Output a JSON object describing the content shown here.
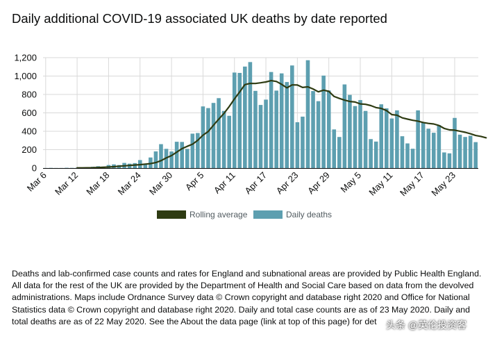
{
  "title": "Daily additional COVID-19 associated UK deaths by date reported",
  "footnote": "Deaths and lab-confirmed case counts and rates for England and subnational areas are provided by Public Health England. All data for the rest of the UK are provided by the Department of Health and Social Care based on data from the devolved administrations. Maps include Ordnance Survey data © Crown copyright and database right 2020 and Office for National Statistics data © Crown copyright and database right 2020. Daily and total case counts are as of 23 May 2020. Daily and total deaths are as of 22 May 2020. See the About the data page (link at top of this page) for det",
  "watermark": "头条 @英伦投资客",
  "colors": {
    "bar": "#5d9fb0",
    "line": "#2e3b12",
    "grid": "#d9d9d9",
    "axis": "#0b0c0c"
  },
  "chart_data": {
    "type": "bar",
    "title": "Daily additional COVID-19 associated UK deaths by date reported",
    "xlabel": "",
    "ylabel": "",
    "ylim": [
      0,
      1200
    ],
    "yticks": [
      0,
      200,
      400,
      600,
      800,
      1000,
      1200
    ],
    "ytick_labels": [
      "0",
      "200",
      "400",
      "600",
      "800",
      "1,000",
      "1,200"
    ],
    "xtick_labels": [
      "Mar 6",
      "Mar 12",
      "Mar 18",
      "Mar 24",
      "Mar 30",
      "Apr 5",
      "Apr 11",
      "Apr 17",
      "Apr 23",
      "Apr 29",
      "May 5",
      "May 11",
      "May 17",
      "May 23"
    ],
    "x_start": "Mar 6",
    "x_end": "May 23",
    "legend": [
      "Rolling average",
      "Daily deaths"
    ],
    "legend_position": "bottom-center",
    "grid": true,
    "series": [
      {
        "name": "Daily deaths",
        "type": "bar",
        "values": [
          1,
          2,
          1,
          1,
          3,
          2,
          3,
          1,
          10,
          14,
          20,
          16,
          33,
          40,
          33,
          56,
          48,
          54,
          87,
          41,
          115,
          181,
          260,
          209,
          180,
          286,
          284,
          209,
          374,
          381,
          670,
          652,
          708,
          760,
          621,
          568,
          1038,
          1034,
          1103,
          1152,
          839,
          686,
          744,
          1044,
          842,
          1029,
          935,
          1115,
          498,
          559,
          1172,
          837,
          727,
          1005,
          843,
          420,
          338,
          909,
          795,
          674,
          739,
          621,
          315,
          288,
          693,
          649,
          539,
          627,
          346,
          268,
          210,
          627,
          494,
          428,
          384,
          468,
          170,
          160,
          545,
          363,
          338,
          351,
          282
        ]
      },
      {
        "name": "Rolling average",
        "type": "line",
        "start_index": 6,
        "values": [
          2,
          2,
          3,
          4,
          6,
          8,
          11,
          15,
          20,
          24,
          29,
          33,
          37,
          43,
          48,
          60,
          81,
          110,
          136,
          173,
          211,
          236,
          260,
          301,
          358,
          398,
          466,
          531,
          594,
          669,
          751,
          828,
          907,
          920,
          919,
          927,
          936,
          950,
          941,
          910,
          872,
          904,
          903,
          876,
          883,
          860,
          829,
          847,
          834,
          778,
          757,
          738,
          724,
          718,
          697,
          693,
          679,
          657,
          648,
          625,
          581,
          574,
          546,
          532,
          519,
          510,
          495,
          485,
          479,
          463,
          431,
          415,
          412,
          401,
          389,
          373,
          354,
          344,
          329
        ]
      }
    ]
  }
}
